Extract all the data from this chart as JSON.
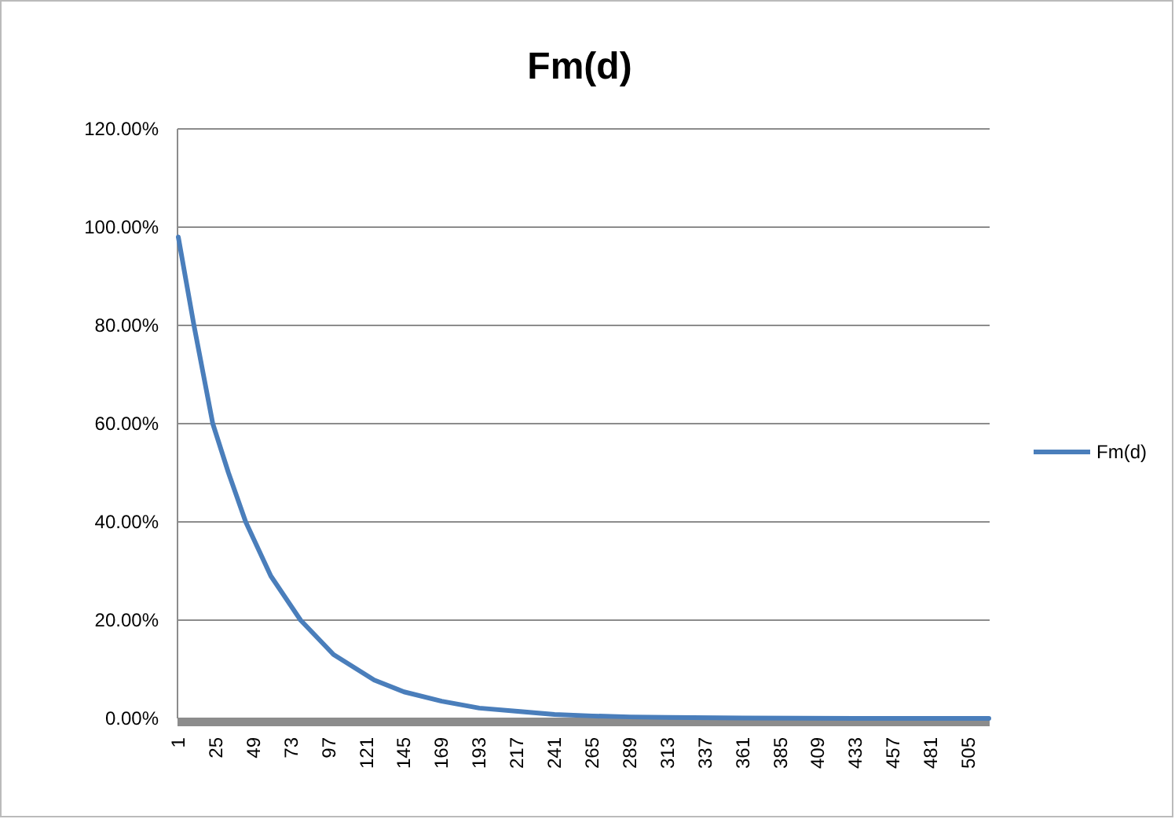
{
  "chart_data": {
    "type": "line",
    "title": "Fm(d)",
    "x": [
      1,
      6,
      11,
      17,
      23,
      33,
      44,
      60,
      79,
      100,
      126,
      145,
      169,
      193,
      219,
      241,
      265,
      289,
      313,
      361,
      433,
      518
    ],
    "series": [
      {
        "name": "Fm(d)",
        "color": "#4a7ebb",
        "values": [
          98,
          89,
          80,
          70,
          60,
          50,
          40,
          29,
          20,
          13,
          7.8,
          5.4,
          3.5,
          2.1,
          1.4,
          0.8,
          0.5,
          0.3,
          0.2,
          0.1,
          0,
          0
        ]
      }
    ],
    "xlim": [
      0.5,
      518.5
    ],
    "xticks": [
      1,
      25,
      49,
      73,
      97,
      121,
      145,
      169,
      193,
      217,
      241,
      265,
      289,
      313,
      337,
      361,
      385,
      409,
      433,
      457,
      481,
      505
    ],
    "ylim": [
      0,
      120
    ],
    "yticks": [
      {
        "value": 0,
        "label": "0.00%"
      },
      {
        "value": 20,
        "label": "20.00%"
      },
      {
        "value": 40,
        "label": "40.00%"
      },
      {
        "value": 60,
        "label": "60.00%"
      },
      {
        "value": 80,
        "label": "80.00%"
      },
      {
        "value": 100,
        "label": "100.00%"
      },
      {
        "value": 120,
        "label": "120.00%"
      }
    ],
    "grid": "y",
    "legend": "right",
    "marker": "none",
    "line_style": "solid"
  }
}
